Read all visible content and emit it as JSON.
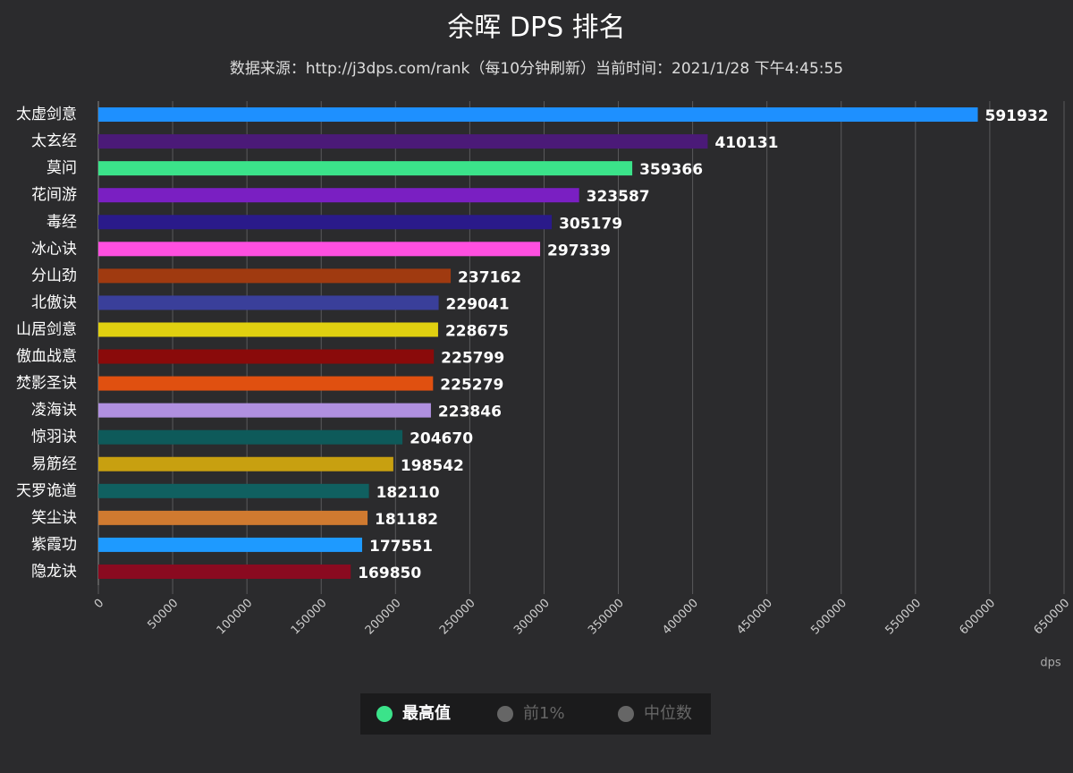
{
  "chart_data": {
    "type": "hbar",
    "title": "余晖 DPS 排名",
    "subtitle": "数据来源：http://j3dps.com/rank（每10分钟刷新）当前时间：2021/1/28 下午4:45:55",
    "x_axis_label": "dps",
    "categories": [
      "太虚剑意",
      "太玄经",
      "莫问",
      "花间游",
      "毒经",
      "冰心诀",
      "分山劲",
      "北傲诀",
      "山居剑意",
      "傲血战意",
      "焚影圣诀",
      "凌海诀",
      "惊羽诀",
      "易筋经",
      "天罗诡道",
      "笑尘诀",
      "紫霞功",
      "隐龙诀"
    ],
    "series": [
      {
        "name": "最高值",
        "color": "#3be38a",
        "values": [
          591932,
          410131,
          359366,
          323587,
          305179,
          297339,
          237162,
          229041,
          228675,
          225799,
          225279,
          223846,
          204670,
          198542,
          182110,
          181182,
          177551,
          169850
        ],
        "bar_colors": [
          "#1e90ff",
          "#4b1a78",
          "#3be38a",
          "#7a1fc2",
          "#2a1a8a",
          "#ff4fe0",
          "#a03a10",
          "#3a3f9a",
          "#e0d010",
          "#8a0a0a",
          "#e05010",
          "#b090e0",
          "#0e5a5a",
          "#c8a010",
          "#106060",
          "#d07a30",
          "#1e9aff",
          "#8a0a20"
        ]
      }
    ],
    "hidden_series": [
      {
        "name": "前1%",
        "color": "#666666"
      },
      {
        "name": "中位数",
        "color": "#666666"
      }
    ],
    "xlim": [
      0,
      650000
    ],
    "xticks": [
      0,
      50000,
      100000,
      150000,
      200000,
      250000,
      300000,
      350000,
      400000,
      450000,
      500000,
      550000,
      600000,
      650000
    ],
    "grid": true
  }
}
